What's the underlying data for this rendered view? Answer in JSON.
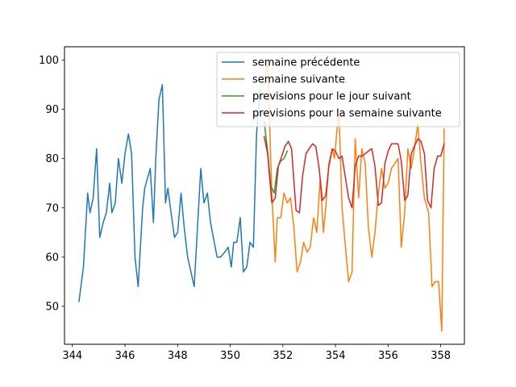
{
  "chart_data": {
    "type": "line",
    "xlim": [
      343.7,
      358.9
    ],
    "ylim": [
      42.3,
      102.7
    ],
    "x_ticks": [
      344,
      346,
      348,
      350,
      352,
      354,
      356,
      358
    ],
    "y_ticks": [
      50,
      60,
      70,
      80,
      90,
      100
    ],
    "legend_placement": "top-right",
    "grid": false,
    "series": [
      {
        "name": "semaine précédente",
        "color": "#1f77b4",
        "x": [
          344.25,
          344.42,
          344.58,
          344.67,
          344.79,
          344.92,
          345.04,
          345.17,
          345.29,
          345.42,
          345.5,
          345.63,
          345.75,
          345.88,
          346.0,
          346.13,
          346.25,
          346.38,
          346.5,
          346.67,
          346.75,
          346.96,
          347.08,
          347.17,
          347.29,
          347.42,
          347.54,
          347.63,
          347.75,
          347.88,
          348.0,
          348.13,
          348.25,
          348.38,
          348.63,
          348.88,
          349.0,
          349.13,
          349.25,
          349.5,
          349.63,
          349.79,
          349.92,
          350.04,
          350.13,
          350.25,
          350.38,
          350.5,
          350.63,
          350.75,
          350.88,
          351.0,
          351.13
        ],
        "y": [
          51,
          58,
          73,
          69,
          72,
          82,
          64,
          67,
          69,
          75,
          69,
          71,
          80,
          75,
          81,
          85,
          81,
          60,
          54,
          70,
          74,
          78,
          67,
          80,
          92,
          95,
          71,
          74,
          69,
          64,
          65,
          73,
          66,
          60,
          54,
          78,
          71,
          73,
          67,
          60,
          60,
          61,
          62,
          58,
          63,
          63,
          68,
          57,
          58,
          63,
          62,
          85,
          94
        ]
      },
      {
        "name": "semaine suivante",
        "color": "#ff7f0e",
        "x": [
          351.29,
          351.42,
          351.58,
          351.71,
          351.79,
          351.92,
          352.04,
          352.17,
          352.29,
          352.42,
          352.54,
          352.67,
          352.79,
          352.92,
          353.04,
          353.17,
          353.29,
          353.42,
          353.54,
          353.63,
          353.75,
          353.88,
          353.96,
          354.13,
          354.25,
          354.38,
          354.5,
          354.63,
          354.75,
          354.88,
          355.0,
          355.13,
          355.25,
          355.38,
          355.5,
          355.63,
          355.75,
          355.88,
          356.0,
          356.13,
          356.25,
          356.38,
          356.5,
          356.63,
          356.75,
          356.88,
          357.0,
          357.13,
          357.25,
          357.38,
          357.54,
          357.67,
          357.79,
          357.92,
          358.04,
          358.13
        ],
        "y": [
          95,
          100,
          73,
          59,
          68,
          68,
          73,
          71,
          72,
          66,
          57,
          59,
          63,
          61,
          62,
          68,
          65,
          76,
          65,
          70,
          79,
          82,
          80,
          90,
          70,
          62,
          55,
          57,
          84,
          72,
          82,
          79,
          66,
          60,
          65,
          73,
          78,
          74,
          75,
          78,
          79,
          80,
          62,
          69,
          82,
          78,
          82,
          87,
          79,
          72,
          69,
          54,
          55,
          55,
          45,
          86
        ]
      },
      {
        "name": "previsions pour le jour suivant",
        "color": "#2ca02c",
        "x": [
          351.29,
          351.42,
          351.54,
          351.67,
          351.79,
          351.92,
          352.04,
          352.17
        ],
        "y": [
          87.5,
          81.5,
          74.5,
          73.0,
          78.0,
          79.5,
          80.0,
          81.5
        ]
      },
      {
        "name": "previsions pour la semaine suivante",
        "color": "#d62728",
        "x": [
          351.29,
          351.42,
          351.58,
          351.71,
          351.83,
          351.96,
          352.08,
          352.21,
          352.33,
          352.5,
          352.63,
          352.75,
          352.88,
          353.0,
          353.13,
          353.25,
          353.38,
          353.5,
          353.63,
          353.75,
          353.88,
          354.0,
          354.13,
          354.25,
          354.38,
          354.5,
          354.63,
          354.75,
          354.88,
          355.0,
          355.13,
          355.25,
          355.38,
          355.5,
          355.63,
          355.75,
          355.88,
          356.0,
          356.13,
          356.25,
          356.38,
          356.5,
          356.63,
          356.75,
          356.88,
          357.0,
          357.13,
          357.25,
          357.38,
          357.5,
          357.63,
          357.75,
          357.88,
          358.0,
          358.13
        ],
        "y": [
          84.5,
          81.0,
          71.0,
          72.0,
          78.5,
          80.5,
          82.5,
          83.5,
          82.0,
          69.5,
          69.0,
          76.5,
          81.0,
          82.0,
          83.0,
          82.5,
          78.0,
          71.5,
          72.5,
          78.5,
          82.0,
          81.5,
          80.0,
          80.5,
          76.0,
          72.0,
          70.0,
          78.5,
          80.5,
          80.5,
          81.0,
          81.5,
          82.0,
          78.5,
          70.5,
          71.0,
          79.0,
          81.5,
          83.0,
          83.0,
          83.0,
          79.5,
          71.5,
          72.5,
          81.0,
          82.5,
          84.0,
          83.5,
          81.0,
          71.5,
          70.0,
          78.0,
          80.5,
          80.5,
          83.0
        ]
      }
    ]
  }
}
